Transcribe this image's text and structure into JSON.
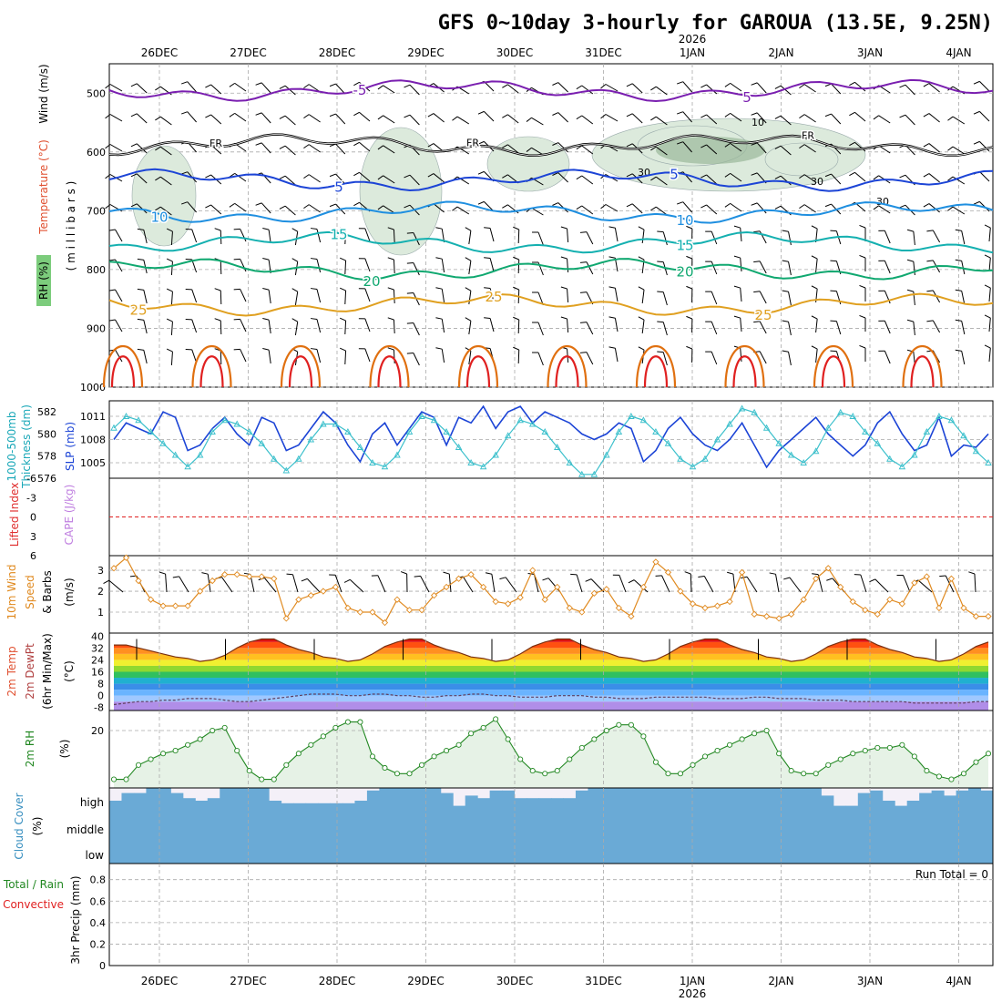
{
  "title": "GFS 0~10day 3-hourly for GAROUA (13.5E, 9.25N)",
  "dates": [
    "26DEC",
    "27DEC",
    "28DEC",
    "29DEC",
    "30DEC",
    "31DEC",
    "1JAN",
    "2JAN",
    "3JAN",
    "4JAN"
  ],
  "year_label": "2026",
  "year_date_index": 6,
  "colors": {
    "purple": "#7a1fb0",
    "black": "#000000",
    "blue": "#1c44d6",
    "sky": "#1f8fe0",
    "teal": "#14b0b0",
    "green": "#10a870",
    "gold": "#e0a020",
    "orange": "#e07010",
    "red": "#e02020",
    "rh_fill": "#dceadc",
    "rh_dark": "#9ab89a",
    "cloud": "#6aaad6",
    "cyan": "#3cc0cc",
    "windorange": "#e08a20",
    "rh2m": "#228822",
    "cape": "#c080e0"
  },
  "chart_data": [
    {
      "type": "contour",
      "name": "upper-air",
      "ylabel_parts": [
        "Wind (m/s)",
        "Temperature (°C)",
        "RH (%)",
        "( m i l l i b a r s )"
      ],
      "y_ticks": [
        500,
        600,
        700,
        800,
        900,
        1000
      ],
      "ylim": [
        450,
        1000
      ],
      "isotherms": [
        {
          "level": "-5",
          "pressure": 495,
          "color": "purple",
          "labels": [
            "-5",
            "5"
          ]
        },
        {
          "level": "FR",
          "pressure": 588,
          "color": "black",
          "labels": [
            "FR",
            "FR",
            "FR"
          ]
        },
        {
          "level": "5",
          "pressure": 648,
          "color": "blue",
          "labels": [
            "5",
            "5"
          ]
        },
        {
          "level": "10",
          "pressure": 703,
          "color": "sky",
          "labels": [
            "10",
            "10"
          ]
        },
        {
          "level": "15",
          "pressure": 755,
          "color": "teal",
          "labels": [
            "15",
            "15"
          ]
        },
        {
          "level": "20",
          "pressure": 800,
          "color": "green",
          "labels": [
            "20",
            "20"
          ]
        },
        {
          "level": "25",
          "pressure": 860,
          "color": "gold",
          "labels": [
            "25",
            "25",
            "25"
          ]
        }
      ],
      "rh_labels": [
        "10",
        "30",
        "30",
        "30"
      ]
    },
    {
      "type": "line",
      "name": "slp-thickness",
      "ylabel_left": [
        "Thickness (dm)",
        "1000-500mb"
      ],
      "ylabel_right": "SLP (mb)",
      "left_ticks": [
        576,
        578,
        580,
        582
      ],
      "right_ticks": [
        1005,
        1008,
        1011
      ],
      "left_lim": [
        576,
        583
      ],
      "right_lim": [
        1003,
        1013
      ],
      "series": [
        {
          "name": "Thickness",
          "color": "blue",
          "values": [
            579.5,
            581.0,
            580.5,
            580.0,
            582.0,
            581.5,
            578.5,
            579.0,
            580.5,
            581.5,
            580.0,
            579.0,
            581.5,
            581.0,
            578.5,
            579.0,
            580.5,
            582.0,
            581.0,
            579.0,
            577.5,
            580.0,
            581.0,
            579.0,
            580.5,
            582.0,
            581.5,
            579.0,
            581.5,
            581.0,
            582.5,
            580.5,
            582.0,
            582.5,
            581.0,
            582.0,
            581.5,
            581.0,
            580.0,
            579.5,
            580.0,
            581.0,
            580.5,
            577.5,
            578.5,
            580.5,
            581.5,
            580.0,
            579.0,
            578.5,
            579.5,
            581.0,
            579.0,
            577.0,
            578.5,
            579.5,
            580.5,
            581.5,
            580.0,
            579.0,
            578.0,
            579.0,
            581.0,
            582.0,
            580.0,
            578.5,
            579.0,
            581.5,
            578.0,
            579.0,
            578.8,
            580.0
          ]
        },
        {
          "name": "SLP",
          "color": "cyan",
          "values": [
            1009.5,
            1011.0,
            1010.5,
            1009.0,
            1007.5,
            1006.0,
            1004.5,
            1006.0,
            1009.0,
            1010.5,
            1010.0,
            1009.0,
            1007.5,
            1005.5,
            1004.0,
            1005.5,
            1008.0,
            1010.0,
            1010.0,
            1009.0,
            1007.0,
            1005.0,
            1004.5,
            1006.0,
            1009.0,
            1011.0,
            1010.5,
            1009.0,
            1007.0,
            1005.0,
            1004.5,
            1006.0,
            1008.5,
            1010.5,
            1010.0,
            1009.0,
            1007.0,
            1005.0,
            1003.5,
            1003.5,
            1006.0,
            1009.0,
            1011.0,
            1010.5,
            1009.0,
            1007.5,
            1005.5,
            1004.5,
            1005.5,
            1008.0,
            1010.0,
            1012.0,
            1011.5,
            1009.5,
            1007.5,
            1006.0,
            1005.0,
            1006.5,
            1009.5,
            1011.5,
            1011.0,
            1009.0,
            1007.5,
            1005.5,
            1004.5,
            1006.0,
            1009.0,
            1011.0,
            1010.5,
            1008.5,
            1006.5,
            1005.0
          ]
        }
      ]
    },
    {
      "type": "line",
      "name": "lifted-index-cape",
      "ylabel_left": "Lifted Index",
      "ylabel_right": "CAPE (J/kg)",
      "left_ticks": [
        -6,
        -3,
        0,
        3,
        6
      ],
      "ylim": [
        -6,
        6
      ],
      "zero_line": 0
    },
    {
      "type": "line",
      "name": "10m-wind",
      "ylabel": [
        "10m Wind",
        "Speed",
        "& Barbs",
        "(m/s)"
      ],
      "y_ticks": [
        1,
        2,
        3
      ],
      "ylim": [
        0,
        3.7
      ],
      "series": [
        {
          "name": "10m Wind Speed",
          "color": "windorange",
          "values": [
            3.1,
            3.6,
            2.5,
            1.6,
            1.3,
            1.3,
            1.3,
            2.0,
            2.5,
            2.8,
            2.8,
            2.7,
            2.7,
            2.6,
            0.7,
            1.6,
            1.8,
            2.0,
            2.2,
            1.2,
            1.0,
            1.0,
            0.5,
            1.6,
            1.1,
            1.1,
            1.8,
            2.2,
            2.6,
            2.8,
            2.2,
            1.5,
            1.4,
            1.7,
            3.0,
            1.6,
            2.2,
            1.2,
            1.0,
            1.9,
            2.1,
            1.2,
            0.8,
            2.2,
            3.4,
            2.9,
            2.0,
            1.4,
            1.2,
            1.3,
            1.5,
            2.9,
            0.9,
            0.8,
            0.7,
            0.9,
            1.6,
            2.6,
            3.1,
            2.2,
            1.5,
            1.1,
            0.9,
            1.6,
            1.4,
            2.4,
            2.7,
            1.2,
            2.6,
            1.2,
            0.8,
            0.8
          ]
        }
      ]
    },
    {
      "type": "area",
      "name": "2m-temp",
      "ylabel": [
        "2m Temp",
        "2m DewPt",
        "(6hr Min/Max)",
        "(°C)"
      ],
      "y_ticks": [
        -8,
        0,
        8,
        16,
        24,
        32,
        40
      ],
      "ylim": [
        -10,
        42
      ],
      "series": [
        {
          "name": "2m Temp",
          "values": [
            34,
            34,
            32,
            30,
            28,
            26,
            25,
            23,
            24,
            27,
            32,
            36,
            38,
            38,
            34,
            31,
            29,
            26,
            25,
            23,
            24,
            28,
            33,
            36,
            38,
            38,
            34,
            31,
            29,
            26,
            25,
            23,
            24,
            28,
            33,
            36,
            38,
            38,
            34,
            31,
            29,
            26,
            25,
            23,
            24,
            28,
            33,
            36,
            38,
            38,
            34,
            31,
            29,
            26,
            25,
            23,
            24,
            28,
            33,
            36,
            38,
            38,
            34,
            31,
            29,
            26,
            25,
            23,
            24,
            28,
            33,
            36
          ]
        },
        {
          "name": "2m DewPt",
          "values": [
            -6,
            -5,
            -4,
            -4,
            -3,
            -3,
            -2,
            -2,
            -2,
            -3,
            -4,
            -4,
            -3,
            -2,
            -1,
            0,
            1,
            1,
            1,
            0,
            0,
            1,
            1,
            0,
            0,
            -1,
            -1,
            0,
            0,
            1,
            1,
            0,
            0,
            -1,
            -1,
            -1,
            0,
            0,
            0,
            -1,
            -1,
            -2,
            -2,
            -2,
            -1,
            -1,
            -1,
            -1,
            -1,
            -2,
            -2,
            -2,
            -1,
            -1,
            -2,
            -2,
            -2,
            -3,
            -3,
            -3,
            -4,
            -4,
            -4,
            -4,
            -4,
            -5,
            -5,
            -5,
            -5,
            -5,
            -4,
            -4
          ]
        }
      ]
    },
    {
      "type": "area",
      "name": "2m-rh",
      "ylabel": [
        "2m RH",
        "(%)"
      ],
      "y_ticks": [
        20
      ],
      "ylim": [
        0,
        27
      ],
      "series": [
        {
          "name": "2m RH",
          "color": "rh2m",
          "values": [
            3,
            3,
            8,
            10,
            12,
            13,
            15,
            17,
            20,
            21,
            13,
            6,
            3,
            3,
            8,
            12,
            15,
            18,
            21,
            23,
            23,
            11,
            7,
            5,
            5,
            8,
            11,
            13,
            15,
            19,
            21,
            24,
            17,
            10,
            6,
            5,
            6,
            10,
            14,
            17,
            20,
            22,
            22,
            18,
            9,
            5,
            5,
            8,
            11,
            13,
            15,
            17,
            19,
            20,
            12,
            6,
            5,
            5,
            8,
            10,
            12,
            13,
            14,
            14,
            15,
            11,
            6,
            4,
            3,
            5,
            9,
            12
          ]
        }
      ]
    },
    {
      "type": "heatmap",
      "name": "cloud-cover",
      "ylabel": [
        "Cloud Cover",
        "(%)"
      ],
      "levels": [
        "high",
        "middle",
        "low"
      ],
      "high_cover": [
        0.5,
        0.8,
        0.8,
        1,
        1,
        0.8,
        0.6,
        0.5,
        0.6,
        1,
        1,
        1,
        1,
        0.5,
        0.4,
        0.4,
        0.4,
        0.4,
        0.4,
        0.4,
        0.5,
        0.9,
        1,
        1,
        1,
        1,
        1,
        0.8,
        0.3,
        0.7,
        0.6,
        0.9,
        0.9,
        0.6,
        0.6,
        0.6,
        0.6,
        0.6,
        0.9,
        1,
        1,
        1,
        1,
        1,
        1,
        1,
        1,
        1,
        1,
        1,
        1,
        1,
        1,
        1,
        1,
        1,
        1,
        1,
        0.7,
        0.3,
        0.3,
        0.8,
        0.9,
        0.5,
        0.3,
        0.5,
        0.8,
        0.9,
        0.7,
        0.9,
        1,
        0.9
      ]
    },
    {
      "type": "bar",
      "name": "precip",
      "ylabel": [
        "3hr Precip (mm)",
        "Total / Rain",
        "Convective"
      ],
      "y_ticks": [
        0,
        0.2,
        0.4,
        0.6,
        0.8
      ],
      "ylim": [
        0,
        0.95
      ],
      "run_total": "Run Total = 0",
      "values": []
    }
  ]
}
